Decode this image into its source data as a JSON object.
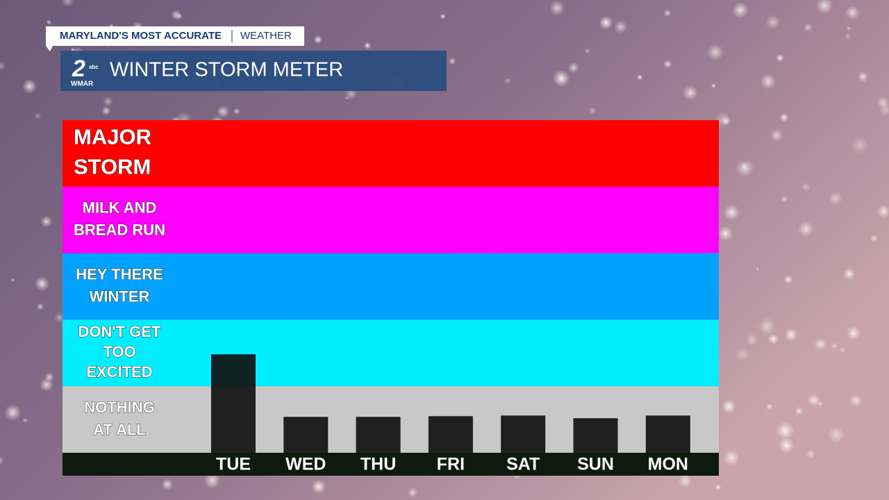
{
  "header": {
    "tagline": "MARYLAND'S MOST ACCURATE",
    "section": "WEATHER",
    "logo_number": "2",
    "logo_network": "abc",
    "logo_station": "WMAR"
  },
  "chart_data": {
    "type": "bar",
    "title": "WINTER STORM METER",
    "levels": [
      {
        "label": [
          "NOTHING",
          "AT ALL"
        ],
        "color": "#c8c8c8"
      },
      {
        "label": [
          "DON'T GET",
          "TOO",
          "EXCITED"
        ],
        "color": "#00eeff"
      },
      {
        "label": [
          "HEY THERE",
          "WINTER"
        ],
        "color": "#00a2ff"
      },
      {
        "label": [
          "MILK AND",
          "BREAD RUN"
        ],
        "color": "#ff00ff"
      },
      {
        "label": [
          "MAJOR",
          "STORM"
        ],
        "color": "#ff0000"
      }
    ],
    "ylim": [
      0,
      5
    ],
    "categories": [
      "TUE",
      "WED",
      "THU",
      "FRI",
      "SAT",
      "SUN",
      "MON"
    ],
    "values": [
      1.48,
      0.54,
      0.54,
      0.55,
      0.56,
      0.52,
      0.56
    ],
    "color": "#111111"
  }
}
